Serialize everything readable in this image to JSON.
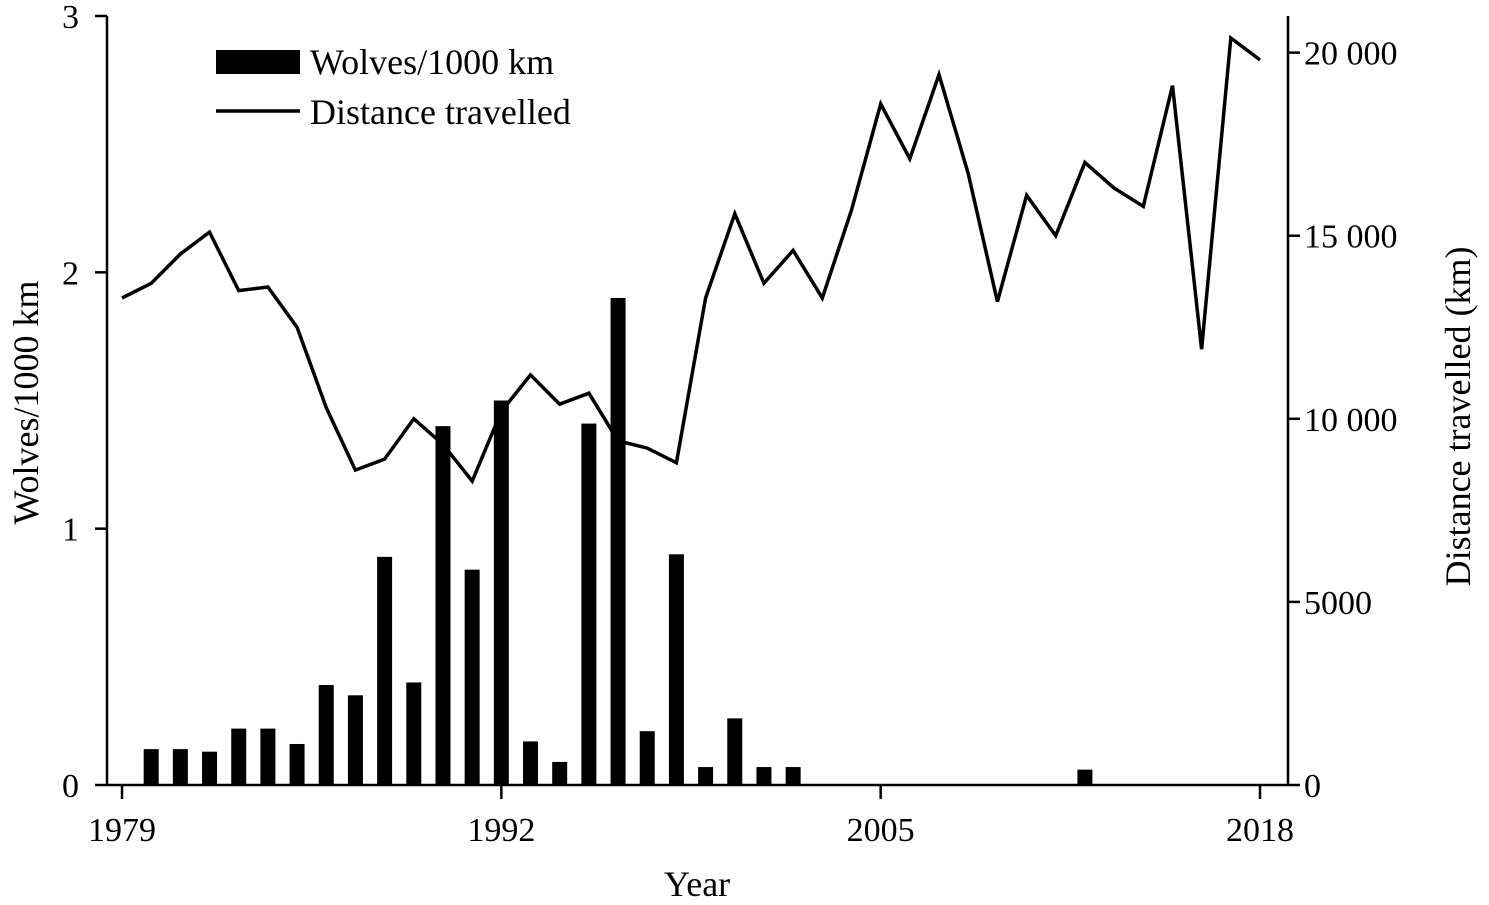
{
  "chart_data": {
    "type": "bar+line",
    "x_label": "Year",
    "left_axis": {
      "label": "Wolves/1000 km",
      "ylim": [
        0,
        3
      ],
      "ticks": [
        0,
        1,
        2,
        3
      ],
      "tick_labels": [
        "0",
        "1",
        "2",
        "3"
      ]
    },
    "right_axis": {
      "label": "Distance travelled (km)",
      "ylim": [
        0,
        21000
      ],
      "ticks": [
        0,
        5000,
        10000,
        15000,
        20000
      ],
      "tick_labels": [
        "0",
        "5000",
        "10 000",
        "15 000",
        "20 000"
      ]
    },
    "x_axis": {
      "xlim": [
        1979,
        2018
      ],
      "ticks": [
        1979,
        1992,
        2005,
        2018
      ],
      "tick_labels": [
        "1979",
        "1992",
        "2005",
        "2018"
      ]
    },
    "legend": {
      "position": "top-left",
      "entries": [
        {
          "label": "Wolves/1000 km",
          "marker": "bar"
        },
        {
          "label": "Distance travelled",
          "marker": "line"
        }
      ]
    },
    "series": [
      {
        "name": "Wolves/1000 km",
        "type": "bar",
        "axis": "left",
        "color": "#000000",
        "x": [
          1980,
          1981,
          1982,
          1983,
          1984,
          1985,
          1986,
          1987,
          1988,
          1989,
          1990,
          1991,
          1992,
          1993,
          1994,
          1995,
          1996,
          1997,
          1998,
          1999,
          2000,
          2001,
          2002,
          2012
        ],
        "values": [
          0.14,
          0.14,
          0.13,
          0.22,
          0.22,
          0.16,
          0.39,
          0.35,
          0.89,
          0.4,
          1.4,
          0.84,
          1.5,
          0.17,
          0.09,
          1.41,
          1.9,
          0.21,
          0.9,
          0.07,
          0.26,
          0.07,
          0.07,
          0.06
        ]
      },
      {
        "name": "Distance travelled",
        "type": "line",
        "axis": "right",
        "color": "#000000",
        "x": [
          1979,
          1980,
          1981,
          1982,
          1983,
          1984,
          1985,
          1986,
          1987,
          1988,
          1989,
          1990,
          1991,
          1992,
          1993,
          1994,
          1995,
          1996,
          1997,
          1998,
          1999,
          2000,
          2001,
          2002,
          2003,
          2004,
          2005,
          2006,
          2007,
          2008,
          2009,
          2010,
          2011,
          2012,
          2013,
          2014,
          2015,
          2016,
          2017,
          2018
        ],
        "values": [
          13300,
          13700,
          14500,
          15100,
          13500,
          13600,
          12500,
          10300,
          8600,
          8900,
          10000,
          9300,
          8300,
          10200,
          11200,
          10400,
          10700,
          9400,
          9200,
          8800,
          13300,
          15600,
          13700,
          14600,
          13300,
          15700,
          18600,
          17100,
          19400,
          16700,
          13200,
          16100,
          15000,
          17000,
          16300,
          15800,
          19100,
          11900,
          20400,
          19800
        ]
      }
    ]
  }
}
